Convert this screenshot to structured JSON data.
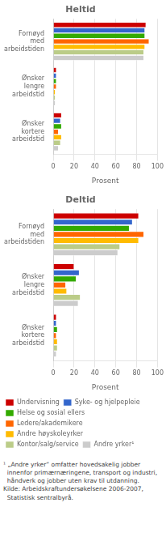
{
  "chart_data": [
    {
      "type": "bar",
      "orientation": "horizontal",
      "title": "Heltid",
      "xlabel": "Prosent",
      "categories": [
        "Fornøyd\nmed\narbeidstiden",
        "Ønsker\nlengre\narbeidstid",
        "Ønsker\nkortere\narbeidstid"
      ],
      "series": [
        {
          "name": "Undervisning",
          "color": "#cc0000",
          "values": [
            89,
            3,
            8
          ]
        },
        {
          "name": "Syke- og hjelpepleie",
          "color": "#3366cc",
          "values": [
            88,
            3,
            7
          ]
        },
        {
          "name": "Helse og sosial ellers",
          "color": "#33aa00",
          "values": [
            88,
            3,
            8
          ]
        },
        {
          "name": "Ledere/akademikere",
          "color": "#ff6600",
          "values": [
            92,
            3,
            5
          ]
        },
        {
          "name": "Andre høyskoleyrker",
          "color": "#ffbb00",
          "values": [
            88,
            2,
            8
          ]
        },
        {
          "name": "Kontor/salg/service",
          "color": "#bbcc88",
          "values": [
            87,
            2,
            7
          ]
        },
        {
          "name": "Andre yrker¹",
          "color": "#cccccc",
          "values": [
            87,
            2,
            5
          ]
        }
      ],
      "xlim": [
        0,
        100
      ],
      "xticks": [
        0,
        20,
        40,
        60,
        80,
        100
      ],
      "grid": true
    },
    {
      "type": "bar",
      "orientation": "horizontal",
      "title": "Deltid",
      "xlabel": "Prosent",
      "categories": [
        "Fornøyd\nmed\narbeidstiden",
        "Ønsker\nlengre\narbeidstid",
        "Ønsker\nkortere\narbeidstid"
      ],
      "series": [
        {
          "name": "Undervisning",
          "color": "#cc0000",
          "values": [
            82,
            20,
            3
          ]
        },
        {
          "name": "Syke- og hjelpepleie",
          "color": "#3366cc",
          "values": [
            76,
            25,
            3
          ]
        },
        {
          "name": "Helse og sosial ellers",
          "color": "#33aa00",
          "values": [
            73,
            22,
            4
          ]
        },
        {
          "name": "Ledere/akademikere",
          "color": "#ff6600",
          "values": [
            87,
            12,
            3
          ]
        },
        {
          "name": "Andre høyskoleyrker",
          "color": "#ffbb00",
          "values": [
            82,
            13,
            4
          ]
        },
        {
          "name": "Kontor/salg/service",
          "color": "#bbcc88",
          "values": [
            64,
            26,
            4
          ]
        },
        {
          "name": "Andre yrker¹",
          "color": "#cccccc",
          "values": [
            62,
            24,
            3
          ]
        }
      ],
      "xlim": [
        0,
        100
      ],
      "xticks": [
        0,
        20,
        40,
        60,
        80,
        100
      ],
      "grid": true,
      "legend": "bottom",
      "annotations": [
        "¹ „Andre yrker“ omfatter hovedsakelig jobber",
        "  innenfor primærnæringene, transport og industri,",
        "  håndverk og jobber uten krav til utdanning.",
        "Kilde: Arbeidskraftundersøkelsene 2006-2007,",
        "  Statistisk sentralbyrå."
      ]
    }
  ]
}
